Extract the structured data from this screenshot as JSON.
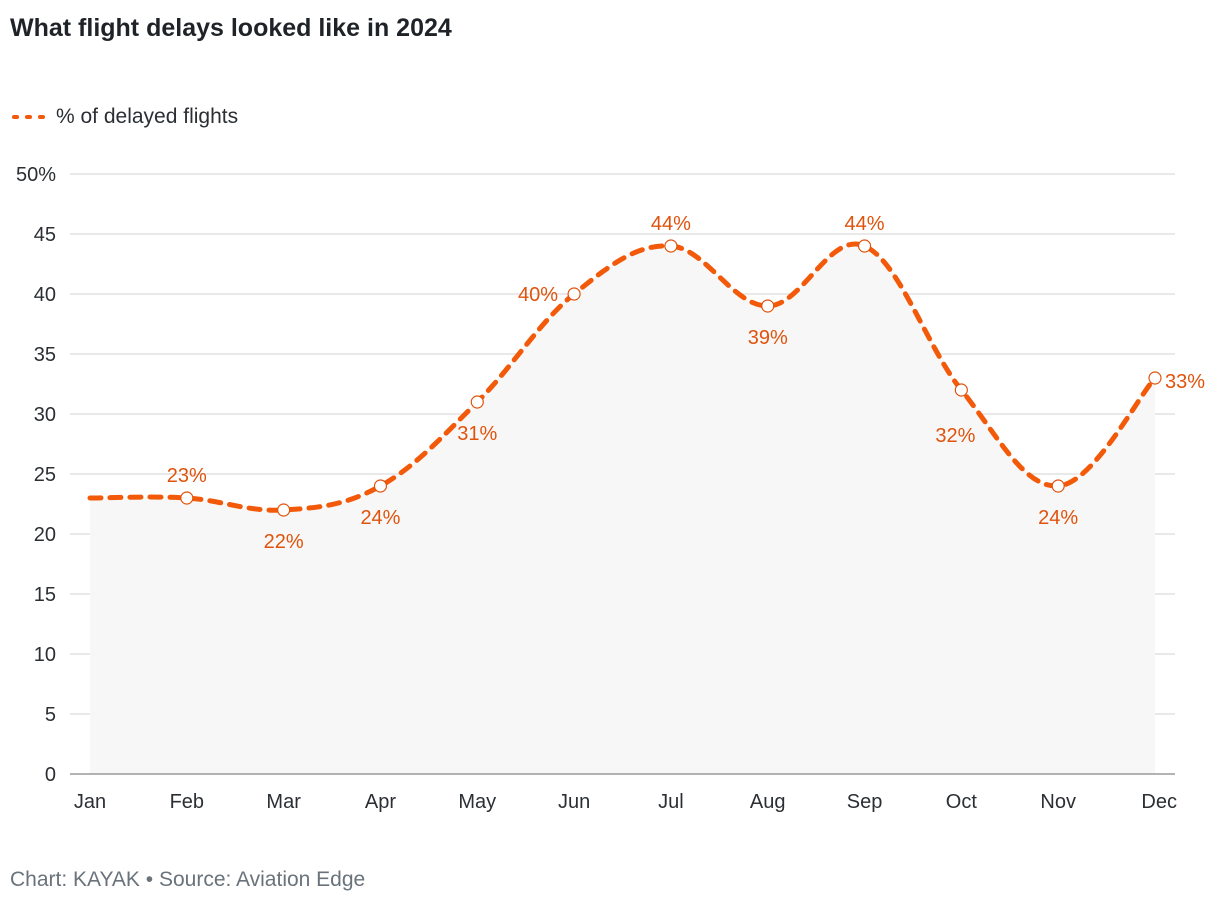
{
  "header": {
    "title": "What flight delays looked like in 2024"
  },
  "footer": {
    "source": "Chart: KAYAK • Source: Aviation Edge"
  },
  "colors": {
    "line": "#f25a0a",
    "label": "#e0530c",
    "grid": "#dcdcdc",
    "area": "#f7f7f7"
  },
  "chart_data": {
    "type": "line",
    "title": "What flight delays looked like in 2024",
    "xlabel": "",
    "ylabel": "",
    "categories": [
      "Jan",
      "Feb",
      "Mar",
      "Apr",
      "May",
      "Jun",
      "Jul",
      "Aug",
      "Sep",
      "Oct",
      "Nov",
      "Dec"
    ],
    "series": [
      {
        "name": "% of delayed flights",
        "values": [
          23,
          23,
          22,
          24,
          31,
          40,
          44,
          39,
          44,
          32,
          24,
          33
        ]
      }
    ],
    "data_labels": [
      "",
      "23%",
      "22%",
      "24%",
      "31%",
      "40%",
      "44%",
      "39%",
      "44%",
      "32%",
      "24%",
      "33%"
    ],
    "y_ticks": [
      "0",
      "5",
      "10",
      "15",
      "20",
      "25",
      "30",
      "35",
      "40",
      "45",
      "50%"
    ],
    "ylim": [
      0,
      50
    ],
    "grid": true,
    "legend_position": "top-left"
  }
}
